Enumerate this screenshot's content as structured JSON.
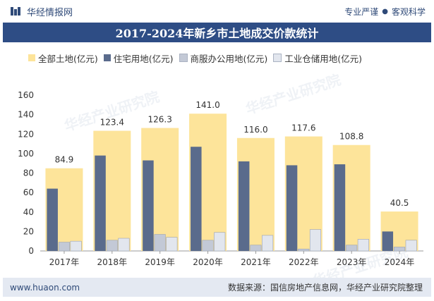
{
  "header": {
    "brand": "华经情报网",
    "tagline_left": "专业严谨",
    "tagline_sep": "●",
    "tagline_right": "客观科学"
  },
  "chart_title": "2017-2024年新乡市土地成交价款统计",
  "watermark": "华经产业研究院",
  "footer": {
    "url": "www.huaon.com",
    "source": "数据来源：国信房地产信息网，华经产业研究院整理"
  },
  "colors": {
    "total": "#fde49a",
    "residential": "#5a6b8c",
    "commercial": "#c3c9d6",
    "industrial": "#e2e6ee",
    "title_bg": "#2e4d85"
  },
  "chart_data": {
    "type": "bar",
    "categories": [
      "2017年",
      "2018年",
      "2019年",
      "2020年",
      "2021年",
      "2022年",
      "2023年",
      "2024年"
    ],
    "series": [
      {
        "name": "全部土地(亿元)",
        "values": [
          84.9,
          123.4,
          126.3,
          141.0,
          116.0,
          117.6,
          108.8,
          40.5
        ],
        "labels": [
          "84.9",
          "123.4",
          "126.3",
          "141.0",
          "116.0",
          "117.6",
          "108.8",
          "40.5"
        ]
      },
      {
        "name": "住宅用地(亿元)",
        "values": [
          64,
          98,
          93,
          107,
          92,
          88,
          89,
          20
        ]
      },
      {
        "name": "商服办公用地(亿元)",
        "values": [
          9,
          11,
          17,
          11,
          6,
          2,
          6,
          4
        ]
      },
      {
        "name": "工业仓储用地(亿元)",
        "values": [
          10,
          13,
          14,
          19,
          16,
          22,
          12,
          11
        ]
      }
    ],
    "yticks": [
      0,
      20,
      40,
      60,
      80,
      100,
      120,
      140,
      160
    ],
    "ylim": [
      0,
      160
    ],
    "legend_position": "top",
    "grid": false
  }
}
